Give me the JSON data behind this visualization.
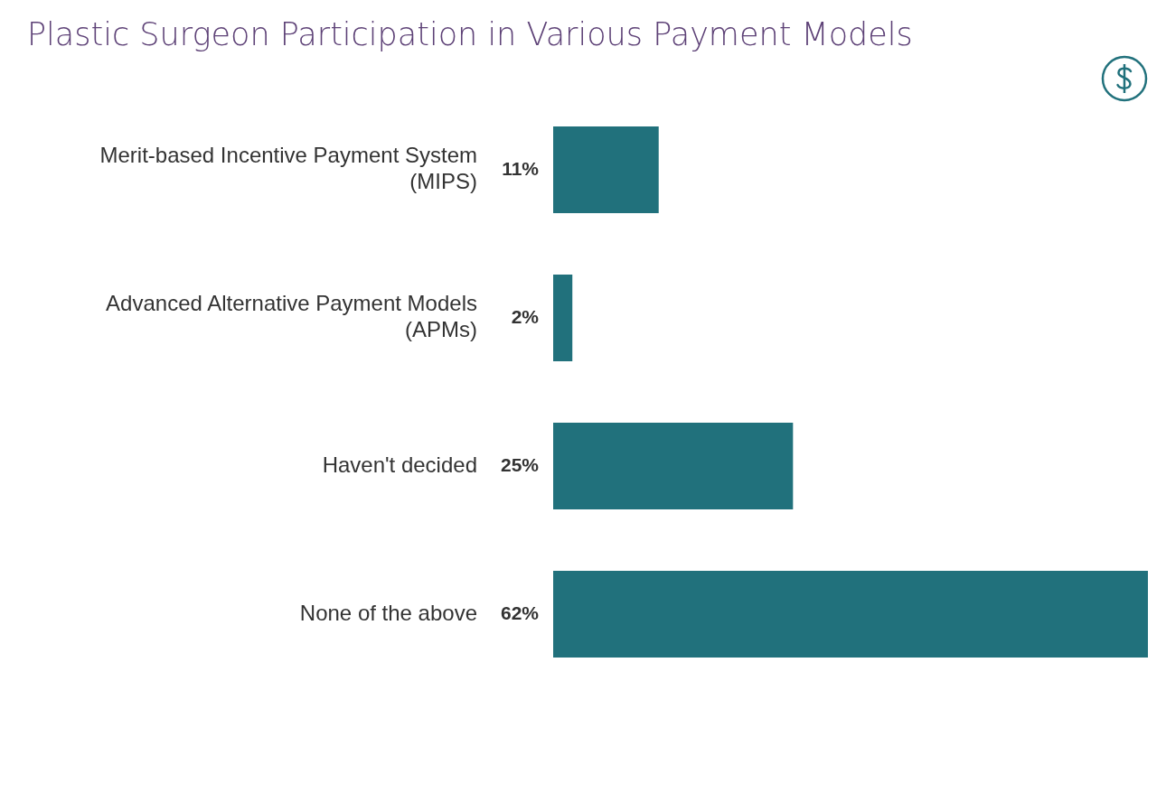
{
  "chart_data": {
    "type": "bar",
    "orientation": "horizontal",
    "title": "Plastic Surgeon Participation in Various Payment Models",
    "categories": [
      "Merit-based Incentive Payment System (MIPS)",
      "Advanced Alternative Payment Models (APMs)",
      "Haven't decided",
      "None of the above"
    ],
    "values": [
      11,
      2,
      25,
      62
    ],
    "value_labels": [
      "11%",
      "2%",
      "25%",
      "62%"
    ],
    "color": "#21717c"
  }
}
